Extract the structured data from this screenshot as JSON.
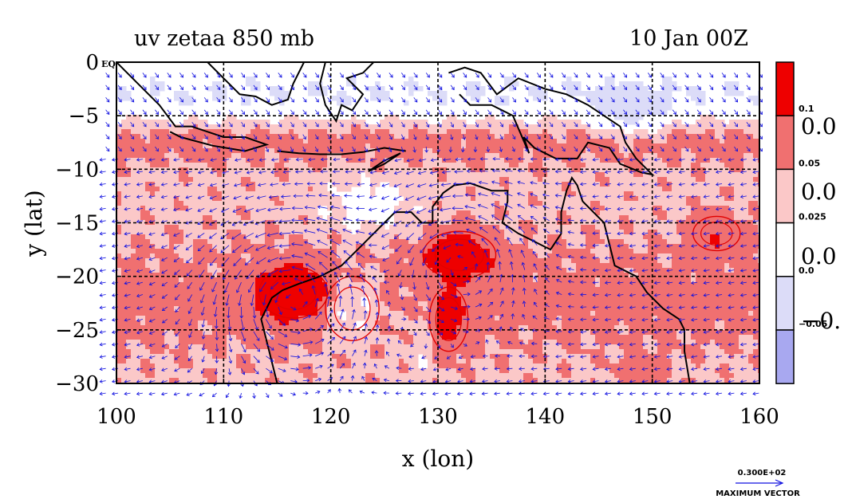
{
  "chart_data": {
    "type": "heatmap",
    "title_left": "uv zetaa 850 mb",
    "title_right": "10 Jan 00Z",
    "xlabel": "x (lon)",
    "ylabel": "y (lat)",
    "xlim": [
      100,
      160
    ],
    "ylim": [
      -30,
      0
    ],
    "x_ticks": [
      {
        "value": 100,
        "label": "100"
      },
      {
        "value": 110,
        "label": "110"
      },
      {
        "value": 120,
        "label": "120"
      },
      {
        "value": 130,
        "label": "130"
      },
      {
        "value": 140,
        "label": "140"
      },
      {
        "value": 150,
        "label": "150"
      },
      {
        "value": 160,
        "label": "160"
      }
    ],
    "y_ticks": [
      {
        "value": 0,
        "label": "0"
      },
      {
        "value": -5,
        "label": "−5"
      },
      {
        "value": -10,
        "label": "−10"
      },
      {
        "value": -15,
        "label": "−15"
      },
      {
        "value": -20,
        "label": "−20"
      },
      {
        "value": -25,
        "label": "−25"
      },
      {
        "value": -30,
        "label": "−30"
      }
    ],
    "y_zero_suffix": "EQ",
    "grid": "dashed",
    "colorbar": {
      "placement": "right",
      "bands": [
        {
          "color": "#ee0000"
        },
        {
          "color": "#f07070"
        },
        {
          "color": "#fbc8c8"
        },
        {
          "color": "#ffffff"
        },
        {
          "color": "#dcdcf8"
        },
        {
          "color": "#a8a8f0"
        }
      ],
      "boundary_labels": [
        "0.1",
        "0.05",
        "0.025",
        "0.0",
        "−0.05"
      ],
      "clipped_labels": [
        "0.0",
        "0.0",
        "0.0",
        "−0."
      ]
    },
    "vector_legend": {
      "value_label": "0.300E+02",
      "caption": "MAXIMUM VECTOR"
    },
    "vector_color": "#1010e0",
    "coast_color": "#000000",
    "contour_color": "#e00000"
  }
}
